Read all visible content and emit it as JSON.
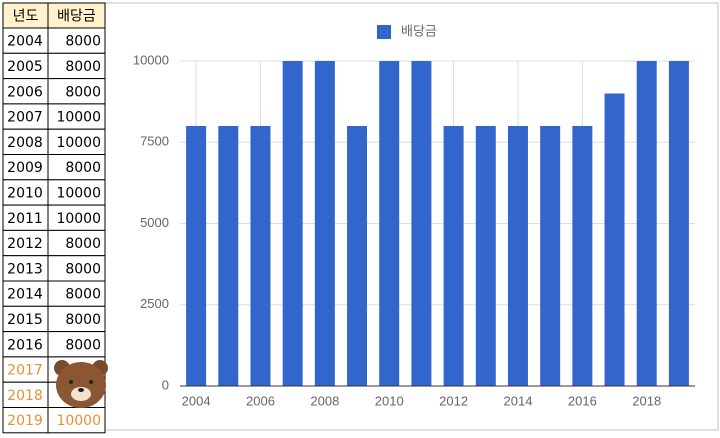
{
  "table": {
    "header": [
      "년도",
      "배당금"
    ],
    "rows": [
      [
        "2004",
        8000
      ],
      [
        "2005",
        8000
      ],
      [
        "2006",
        8000
      ],
      [
        "2007",
        10000
      ],
      [
        "2008",
        10000
      ],
      [
        "2009",
        8000
      ],
      [
        "2010",
        10000
      ],
      [
        "2011",
        10000
      ],
      [
        "2012",
        8000
      ],
      [
        "2013",
        8000
      ],
      [
        "2014",
        8000
      ],
      [
        "2015",
        8000
      ],
      [
        "2016",
        8000
      ],
      [
        "2017"
      ],
      [
        "2018"
      ],
      [
        "2019",
        10000
      ]
    ]
  },
  "chart_data": {
    "type": "bar",
    "categories": [
      "2004",
      null,
      "2006",
      null,
      "2008",
      null,
      "2010",
      null,
      "2012",
      null,
      "2014",
      null,
      "2016",
      null,
      "2018",
      null
    ],
    "series": [
      {
        "name": "배당금",
        "color": "#3366cc",
        "values": [
          8000,
          8000,
          8000,
          10000,
          10000,
          8000,
          10000,
          10000,
          8000,
          8000,
          8000,
          8000,
          8000,
          9000,
          10000,
          10000
        ]
      }
    ],
    "ylim": [
      0,
      10000
    ],
    "yticks": [
      0,
      2500,
      5000,
      7500,
      10000
    ],
    "grid": true,
    "legend": "top"
  }
}
